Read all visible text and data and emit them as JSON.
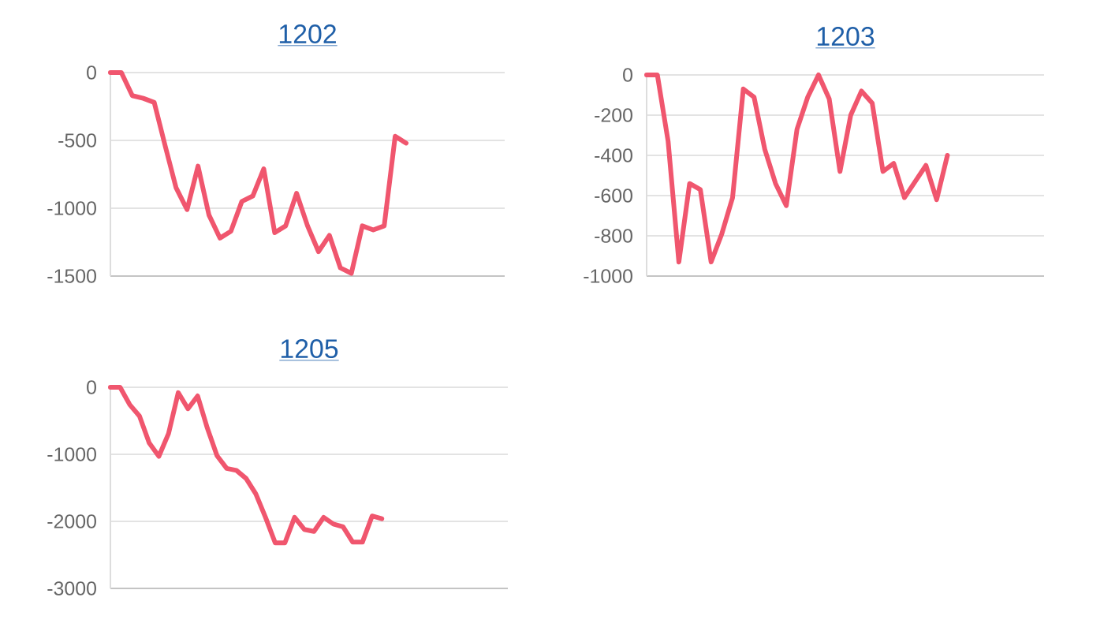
{
  "chart_data": [
    {
      "type": "line",
      "title": "1202",
      "categories": [
        null,
        null,
        null,
        null,
        null,
        null,
        null,
        null,
        null,
        null,
        null,
        null,
        null,
        null,
        null,
        null,
        null,
        null,
        null,
        null,
        null,
        null,
        null,
        null,
        null,
        null,
        null,
        null,
        null,
        null,
        null,
        null,
        null,
        null,
        null,
        null,
        null
      ],
      "values": [
        0,
        0,
        -170,
        -190,
        -220,
        -540,
        -850,
        -1010,
        -690,
        -1050,
        -1220,
        -1170,
        -950,
        -910,
        -710,
        -1180,
        -1130,
        -890,
        -1130,
        -1320,
        -1200,
        -1440,
        -1480,
        -1130,
        -1160,
        -1130,
        -470,
        -520,
        null,
        null,
        null,
        null,
        null,
        null,
        null,
        null,
        null
      ],
      "color": "#f0566e",
      "ylim": [
        -1500,
        0
      ],
      "yticks": [
        0,
        -500,
        -1000,
        -1500
      ],
      "grid": "y"
    },
    {
      "type": "line",
      "title": "1203",
      "categories": [
        null,
        null,
        null,
        null,
        null,
        null,
        null,
        null,
        null,
        null,
        null,
        null,
        null,
        null,
        null,
        null,
        null,
        null,
        null,
        null,
        null,
        null,
        null,
        null,
        null,
        null,
        null,
        null,
        null,
        null,
        null,
        null,
        null,
        null,
        null,
        null,
        null,
        null
      ],
      "values": [
        0,
        0,
        -330,
        -930,
        -540,
        -570,
        -930,
        -790,
        -610,
        -70,
        -110,
        -370,
        -540,
        -650,
        -270,
        -110,
        0,
        -120,
        -480,
        -200,
        -80,
        -140,
        -480,
        -440,
        -610,
        -530,
        -450,
        -620,
        -400,
        null,
        null,
        null,
        null,
        null,
        null,
        null,
        null,
        null
      ],
      "color": "#f0566e",
      "ylim": [
        -1000,
        0
      ],
      "yticks": [
        0,
        -200,
        -400,
        -600,
        -800,
        -1000
      ],
      "grid": "y"
    },
    {
      "type": "line",
      "title": "1205",
      "categories": [
        null,
        null,
        null,
        null,
        null,
        null,
        null,
        null,
        null,
        null,
        null,
        null,
        null,
        null,
        null,
        null,
        null,
        null,
        null,
        null,
        null,
        null,
        null,
        null,
        null,
        null,
        null,
        null,
        null,
        null,
        null,
        null,
        null,
        null,
        null,
        null,
        null,
        null,
        null,
        null,
        null,
        null
      ],
      "values": [
        0,
        0,
        -260,
        -430,
        -830,
        -1030,
        -690,
        -80,
        -320,
        -130,
        -610,
        -1020,
        -1210,
        -1240,
        -1360,
        -1590,
        -1940,
        -2320,
        -2320,
        -1940,
        -2120,
        -2150,
        -1940,
        -2040,
        -2080,
        -2310,
        -2310,
        -1920,
        -1960,
        null,
        null,
        null,
        null,
        null,
        null,
        null,
        null,
        null,
        null,
        null,
        null,
        null
      ],
      "color": "#f0566e",
      "ylim": [
        -3000,
        0
      ],
      "yticks": [
        0,
        -1000,
        -2000,
        -3000
      ],
      "grid": "y"
    }
  ]
}
